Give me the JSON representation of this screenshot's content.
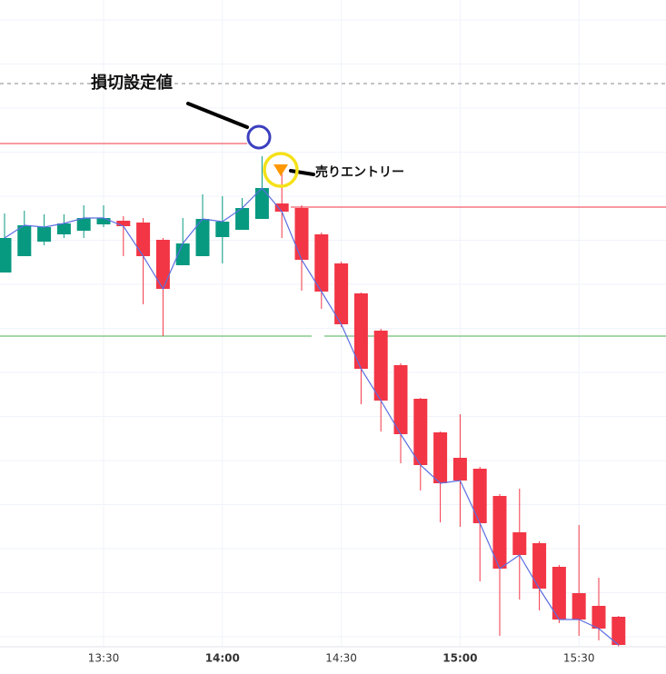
{
  "chart_data": {
    "type": "candlestick",
    "categories": [
      null,
      null,
      null,
      null,
      null,
      "13:30",
      null,
      null,
      null,
      null,
      null,
      "14:00",
      null,
      null,
      null,
      null,
      null,
      "14:30",
      null,
      null,
      null,
      null,
      null,
      "15:00",
      null,
      null,
      null,
      null,
      null,
      "15:30",
      null,
      null
    ],
    "open": [
      442,
      460,
      476,
      484,
      488,
      495,
      499,
      497,
      478,
      450,
      460,
      481,
      489,
      501,
      518,
      513,
      484,
      452,
      419,
      378,
      340,
      303,
      266,
      238,
      226,
      196,
      156,
      144,
      118,
      89,
      75,
      63
    ],
    "high": [
      507,
      510,
      506,
      506,
      516,
      516,
      504,
      502,
      480,
      502,
      528,
      526,
      524,
      570,
      556,
      516,
      486,
      454,
      420,
      380,
      342,
      304,
      267,
      286,
      228,
      198,
      204,
      146,
      120,
      164,
      106,
      64
    ],
    "low": [
      442,
      460,
      472,
      480,
      480,
      492,
      460,
      407,
      372,
      450,
      460,
      452,
      489,
      501,
      480,
      422,
      402,
      382,
      297,
      267,
      232,
      202,
      167,
      162,
      102,
      42,
      82,
      70,
      56,
      42,
      37,
      30
    ],
    "close": [
      480,
      494,
      492,
      496,
      502,
      502,
      493,
      460,
      424,
      474,
      501,
      498,
      513,
      535,
      509,
      456,
      421,
      385,
      336,
      301,
      264,
      230,
      210,
      213,
      166,
      116,
      131,
      94,
      60,
      60,
      50,
      32
    ],
    "up_color": "#089981",
    "down_color": "#f23645",
    "close_line_color": "#5b6ee1",
    "ylim": [
      30,
      742
    ],
    "lines": [
      {
        "value": 650,
        "color": "#888888",
        "dashed": true
      },
      {
        "value": 584,
        "color": "#f23645"
      },
      {
        "value": 514,
        "color": "#f23645"
      },
      {
        "value": 372,
        "color": "#4caf50"
      }
    ],
    "annotations": [
      "損切設定値",
      "売りエントリー"
    ]
  }
}
